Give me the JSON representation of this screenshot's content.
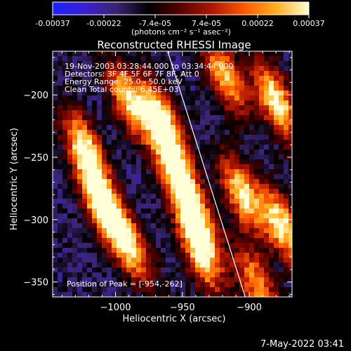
{
  "colorbar": {
    "tick_labels": [
      "-0.00037",
      "-0.00022",
      "-7.4e-05",
      "7.4e-05",
      "0.00022",
      "0.00037"
    ],
    "range": [
      -0.00037,
      0.00037
    ],
    "colors": [
      "#1a24ff",
      "#3a1fd0",
      "#3a2470",
      "#000000",
      "#5a0000",
      "#b01800",
      "#ff5a00",
      "#ffb020",
      "#ffffd8"
    ],
    "units": "(photons cm⁻² s⁻¹ asec⁻²)"
  },
  "chart_data": {
    "type": "heatmap",
    "title": "Reconstructed RHESSI Image",
    "xlabel": "Heliocentric X (arcsec)",
    "ylabel": "Heliocentric Y (arcsec)",
    "xlim": [
      -1047,
      -868
    ],
    "ylim": [
      -362,
      -165
    ],
    "x_ticks": [
      -1000,
      -950,
      -900
    ],
    "x_tick_labels": [
      "−1000",
      "−950",
      "−900"
    ],
    "y_ticks": [
      -200,
      -250,
      -300,
      -350
    ],
    "y_tick_labels": [
      "−200",
      "−250",
      "−300",
      "−350"
    ],
    "annotations": [
      "19-Nov-2003 03:28:44.000 to 03:34:44.000",
      "Detectors: 3F 4F 5F 6F 7F 8F, Att 0",
      "Energy Range: 25.0 - 50.0 keV",
      "Clean     Total counts: 6.45E+03"
    ],
    "peak_label": "Position of Peak = [-954,-262]",
    "peak": [
      -954,
      -262
    ],
    "limb_line": [
      [
        -961,
        -165
      ],
      [
        -903,
        -362
      ]
    ],
    "bright_blobs": [
      {
        "x": -1022,
        "y": -245,
        "peak": 0.00037
      },
      {
        "x": -1010,
        "y": -290,
        "peak": 0.00037
      },
      {
        "x": -990,
        "y": -320,
        "peak": 0.0003
      },
      {
        "x": -990,
        "y": -205,
        "peak": 0.0003
      },
      {
        "x": -966,
        "y": -218,
        "peak": 0.00034
      },
      {
        "x": -954,
        "y": -262,
        "peak": 0.00037
      },
      {
        "x": -940,
        "y": -300,
        "peak": 0.0003
      },
      {
        "x": -936,
        "y": -330,
        "peak": 0.00025
      },
      {
        "x": -918,
        "y": -185,
        "peak": 0.00028
      },
      {
        "x": -905,
        "y": -280,
        "peak": 0.00032
      },
      {
        "x": -880,
        "y": -205,
        "peak": 0.00037
      },
      {
        "x": -875,
        "y": -305,
        "peak": 0.00034
      },
      {
        "x": -895,
        "y": -350,
        "peak": 0.00022
      }
    ],
    "background": -0.00016
  },
  "footer": {
    "timestamp": "7-May-2022 03:41"
  }
}
